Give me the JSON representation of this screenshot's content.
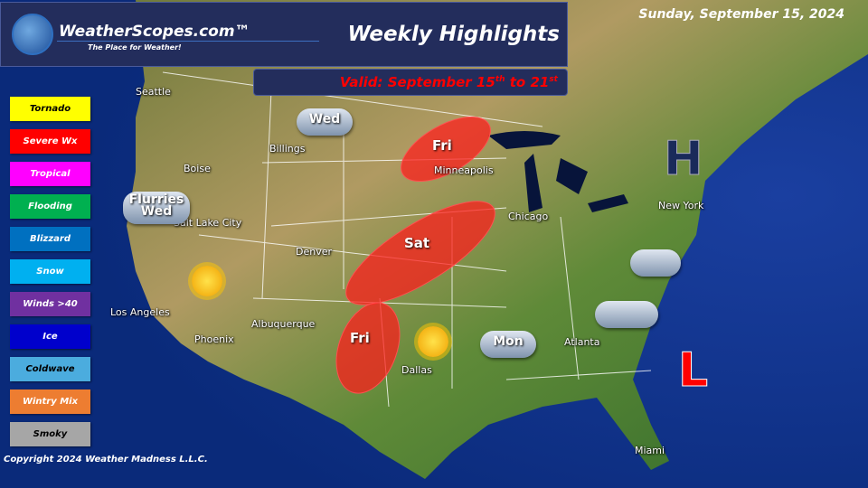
{
  "header": {
    "brand": "WeatherScopes.com™",
    "tagline": "The Place for Weather!",
    "title": "Weekly Highlights",
    "date": "Sunday, September 15, 2024",
    "valid_prefix": "Valid: September 15",
    "valid_sup1": "th",
    "valid_mid": " to 21",
    "valid_sup2": "st"
  },
  "legend": [
    {
      "label": "Tornado",
      "color": "#ffff00",
      "text": "#000"
    },
    {
      "label": "Severe Wx",
      "color": "#ff0000",
      "text": "#fff"
    },
    {
      "label": "Tropical",
      "color": "#ff00ff",
      "text": "#fff"
    },
    {
      "label": "Flooding",
      "color": "#00b050",
      "text": "#fff"
    },
    {
      "label": "Blizzard",
      "color": "#0070c0",
      "text": "#fff"
    },
    {
      "label": "Snow",
      "color": "#00b0f0",
      "text": "#fff"
    },
    {
      "label": "Winds >40",
      "color": "#7030a0",
      "text": "#fff"
    },
    {
      "label": "Ice",
      "color": "#0000cc",
      "text": "#fff"
    },
    {
      "label": "Coldwave",
      "color": "#4bacde",
      "text": "#000"
    },
    {
      "label": "Wintry Mix",
      "color": "#ed7d31",
      "text": "#fff"
    },
    {
      "label": "Smoky",
      "color": "#a6a6a6",
      "text": "#000"
    }
  ],
  "cities": [
    "Seattle",
    "Billings",
    "Boise",
    "Salt Lake City",
    "Denver",
    "Minneapolis",
    "Chicago",
    "New York",
    "Los Angeles",
    "Phoenix",
    "Albuquerque",
    "Dallas",
    "Atlanta",
    "Miami"
  ],
  "severe_areas": [
    "Fri",
    "Sat",
    "Fri"
  ],
  "weather_icons": {
    "billings": "Wed",
    "boise_line1": "Flurries",
    "boise_line2": "Wed",
    "mississippi": "Mon"
  },
  "pressure": {
    "high": "H",
    "low": "L"
  },
  "copyright": "Copyright 2024 Weather Madness L.L.C."
}
